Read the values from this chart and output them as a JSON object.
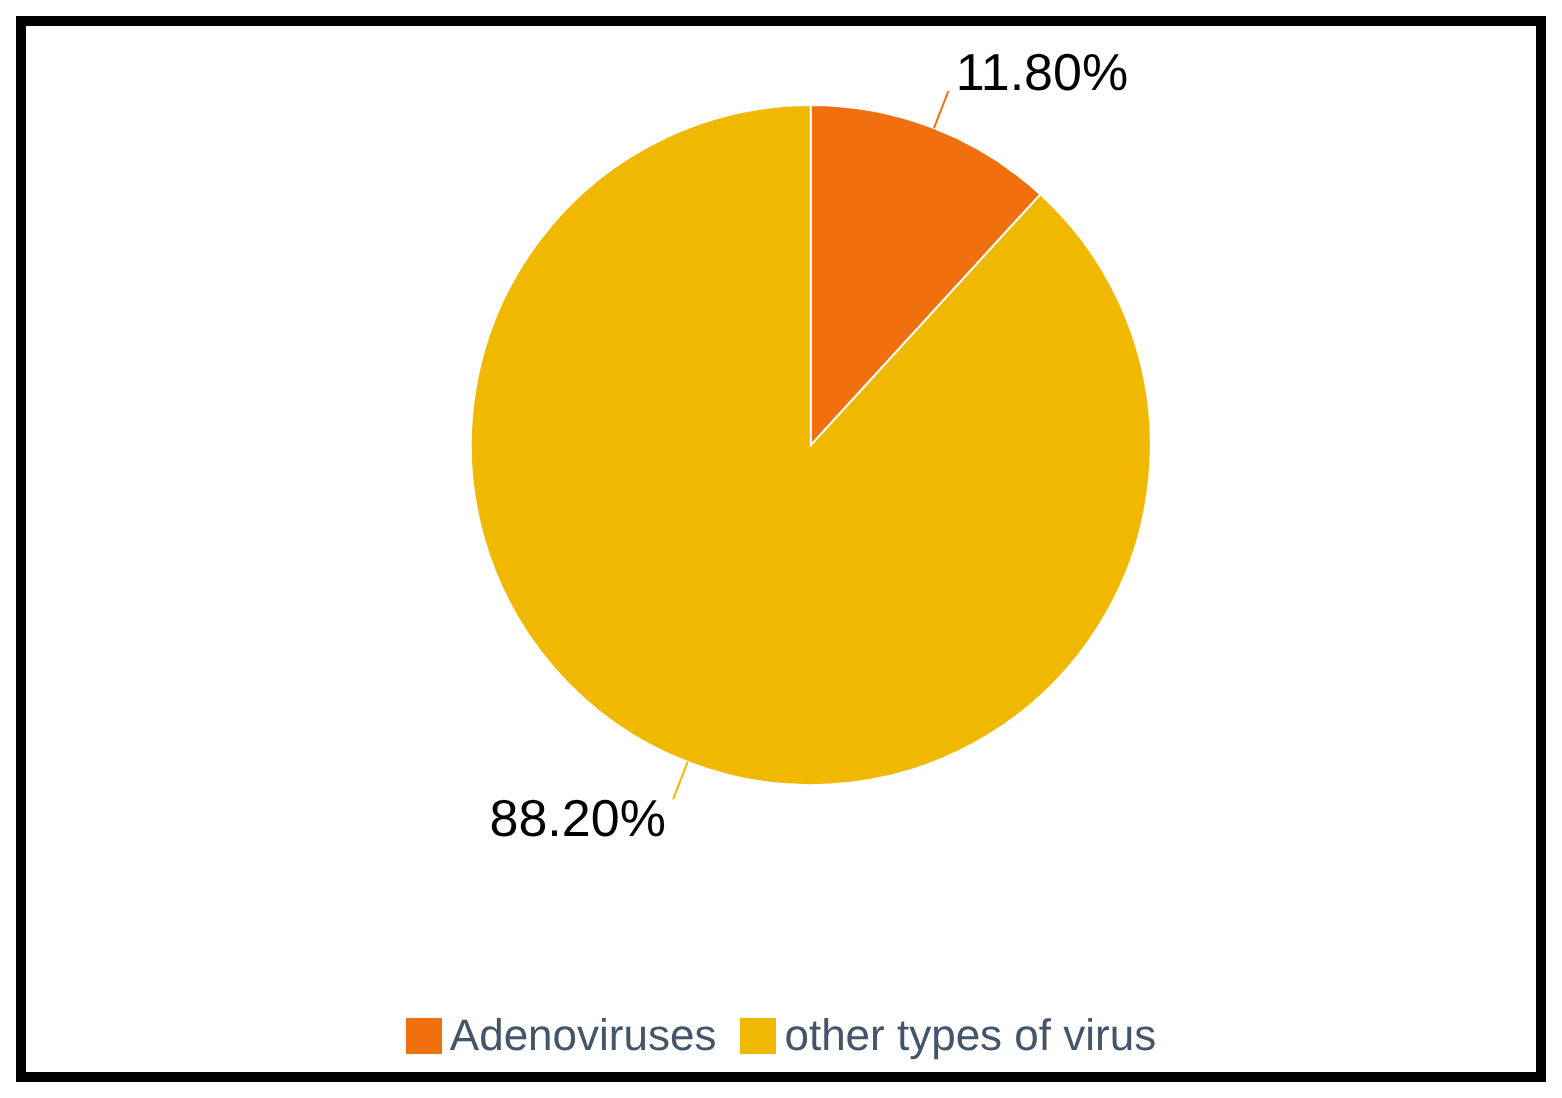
{
  "chart_data": {
    "type": "pie",
    "categories": [
      "Adenoviruses",
      "other types of virus"
    ],
    "values": [
      11.8,
      88.2
    ],
    "colors": [
      "#f07010",
      "#f0b800"
    ],
    "value_labels": [
      "11.80%",
      "88.20%"
    ],
    "legend": "bottom"
  }
}
